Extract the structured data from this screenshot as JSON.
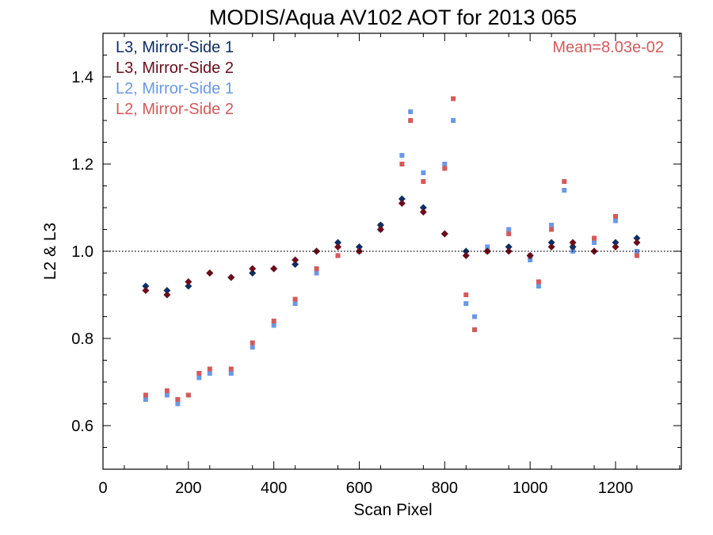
{
  "chart_data": {
    "type": "scatter",
    "title": "MODIS/Aqua AV102 AOT for 2013 065",
    "xlabel": "Scan Pixel",
    "ylabel": "L2 & L3",
    "xlim": [
      0,
      1354
    ],
    "ylim": [
      0.5,
      1.5
    ],
    "x_ticks": [
      0,
      200,
      400,
      600,
      800,
      1000,
      1200
    ],
    "y_ticks": [
      0.6,
      0.8,
      1.0,
      1.2,
      1.4
    ],
    "x_tick_labels": [
      "0",
      "200",
      "400",
      "600",
      "800",
      "1000",
      "1200"
    ],
    "y_tick_labels": [
      "0.6",
      "0.8",
      "1.0",
      "1.2",
      "1.4"
    ],
    "reference_line": 1.0,
    "annotation": "Mean=8.03e-02",
    "legend_position": "top-left",
    "colors": {
      "l3_ms1": "#0d2e63",
      "l3_ms2": "#6a0d1a",
      "l2_ms1": "#6a98e6",
      "l2_ms2": "#d45a5a",
      "annotation": "#d45a5a"
    },
    "series": [
      {
        "name": "L3, Mirror-Side 1",
        "color_key": "l3_ms1",
        "marker": "diamond",
        "x": [
          100,
          150,
          200,
          250,
          300,
          350,
          400,
          450,
          500,
          550,
          600,
          650,
          700,
          750,
          800,
          850,
          900,
          950,
          1000,
          1050,
          1100,
          1150,
          1200,
          1250
        ],
        "y": [
          0.92,
          0.91,
          0.92,
          0.95,
          0.94,
          0.95,
          0.96,
          0.97,
          1.0,
          1.02,
          1.01,
          1.06,
          1.12,
          1.1,
          1.04,
          1.0,
          1.0,
          1.01,
          0.99,
          1.02,
          1.01,
          1.0,
          1.02,
          1.03
        ]
      },
      {
        "name": "L3, Mirror-Side 2",
        "color_key": "l3_ms2",
        "marker": "diamond",
        "x": [
          100,
          150,
          200,
          250,
          300,
          350,
          400,
          450,
          500,
          550,
          600,
          650,
          700,
          750,
          800,
          850,
          900,
          950,
          1000,
          1050,
          1100,
          1150,
          1200,
          1250
        ],
        "y": [
          0.91,
          0.9,
          0.93,
          0.95,
          0.94,
          0.96,
          0.96,
          0.98,
          1.0,
          1.01,
          1.0,
          1.05,
          1.11,
          1.09,
          1.04,
          0.99,
          1.0,
          1.0,
          0.99,
          1.01,
          1.02,
          1.0,
          1.01,
          1.02
        ]
      },
      {
        "name": "L2, Mirror-Side 1",
        "color_key": "l2_ms1",
        "marker": "square",
        "x": [
          100,
          150,
          175,
          200,
          225,
          250,
          300,
          350,
          400,
          450,
          500,
          550,
          600,
          650,
          700,
          720,
          750,
          800,
          820,
          850,
          870,
          900,
          950,
          1000,
          1020,
          1050,
          1080,
          1100,
          1150,
          1200,
          1250
        ],
        "y": [
          0.66,
          0.67,
          0.65,
          0.67,
          0.71,
          0.72,
          0.72,
          0.78,
          0.83,
          0.88,
          0.95,
          0.99,
          1.0,
          1.05,
          1.22,
          1.32,
          1.18,
          1.2,
          1.3,
          0.88,
          0.85,
          1.01,
          1.05,
          0.98,
          0.92,
          1.06,
          1.14,
          1.0,
          1.02,
          1.07,
          1.0
        ]
      },
      {
        "name": "L2, Mirror-Side 2",
        "color_key": "l2_ms2",
        "marker": "square",
        "x": [
          100,
          150,
          175,
          200,
          225,
          250,
          300,
          350,
          400,
          450,
          500,
          550,
          600,
          650,
          700,
          720,
          750,
          800,
          820,
          850,
          870,
          900,
          950,
          1000,
          1020,
          1050,
          1080,
          1100,
          1150,
          1200,
          1250
        ],
        "y": [
          0.67,
          0.68,
          0.66,
          0.67,
          0.72,
          0.73,
          0.73,
          0.79,
          0.84,
          0.89,
          0.96,
          0.99,
          1.0,
          1.06,
          1.2,
          1.3,
          1.16,
          1.19,
          1.35,
          0.9,
          0.82,
          1.0,
          1.04,
          0.99,
          0.93,
          1.05,
          1.16,
          1.01,
          1.03,
          1.08,
          0.99
        ]
      }
    ]
  }
}
